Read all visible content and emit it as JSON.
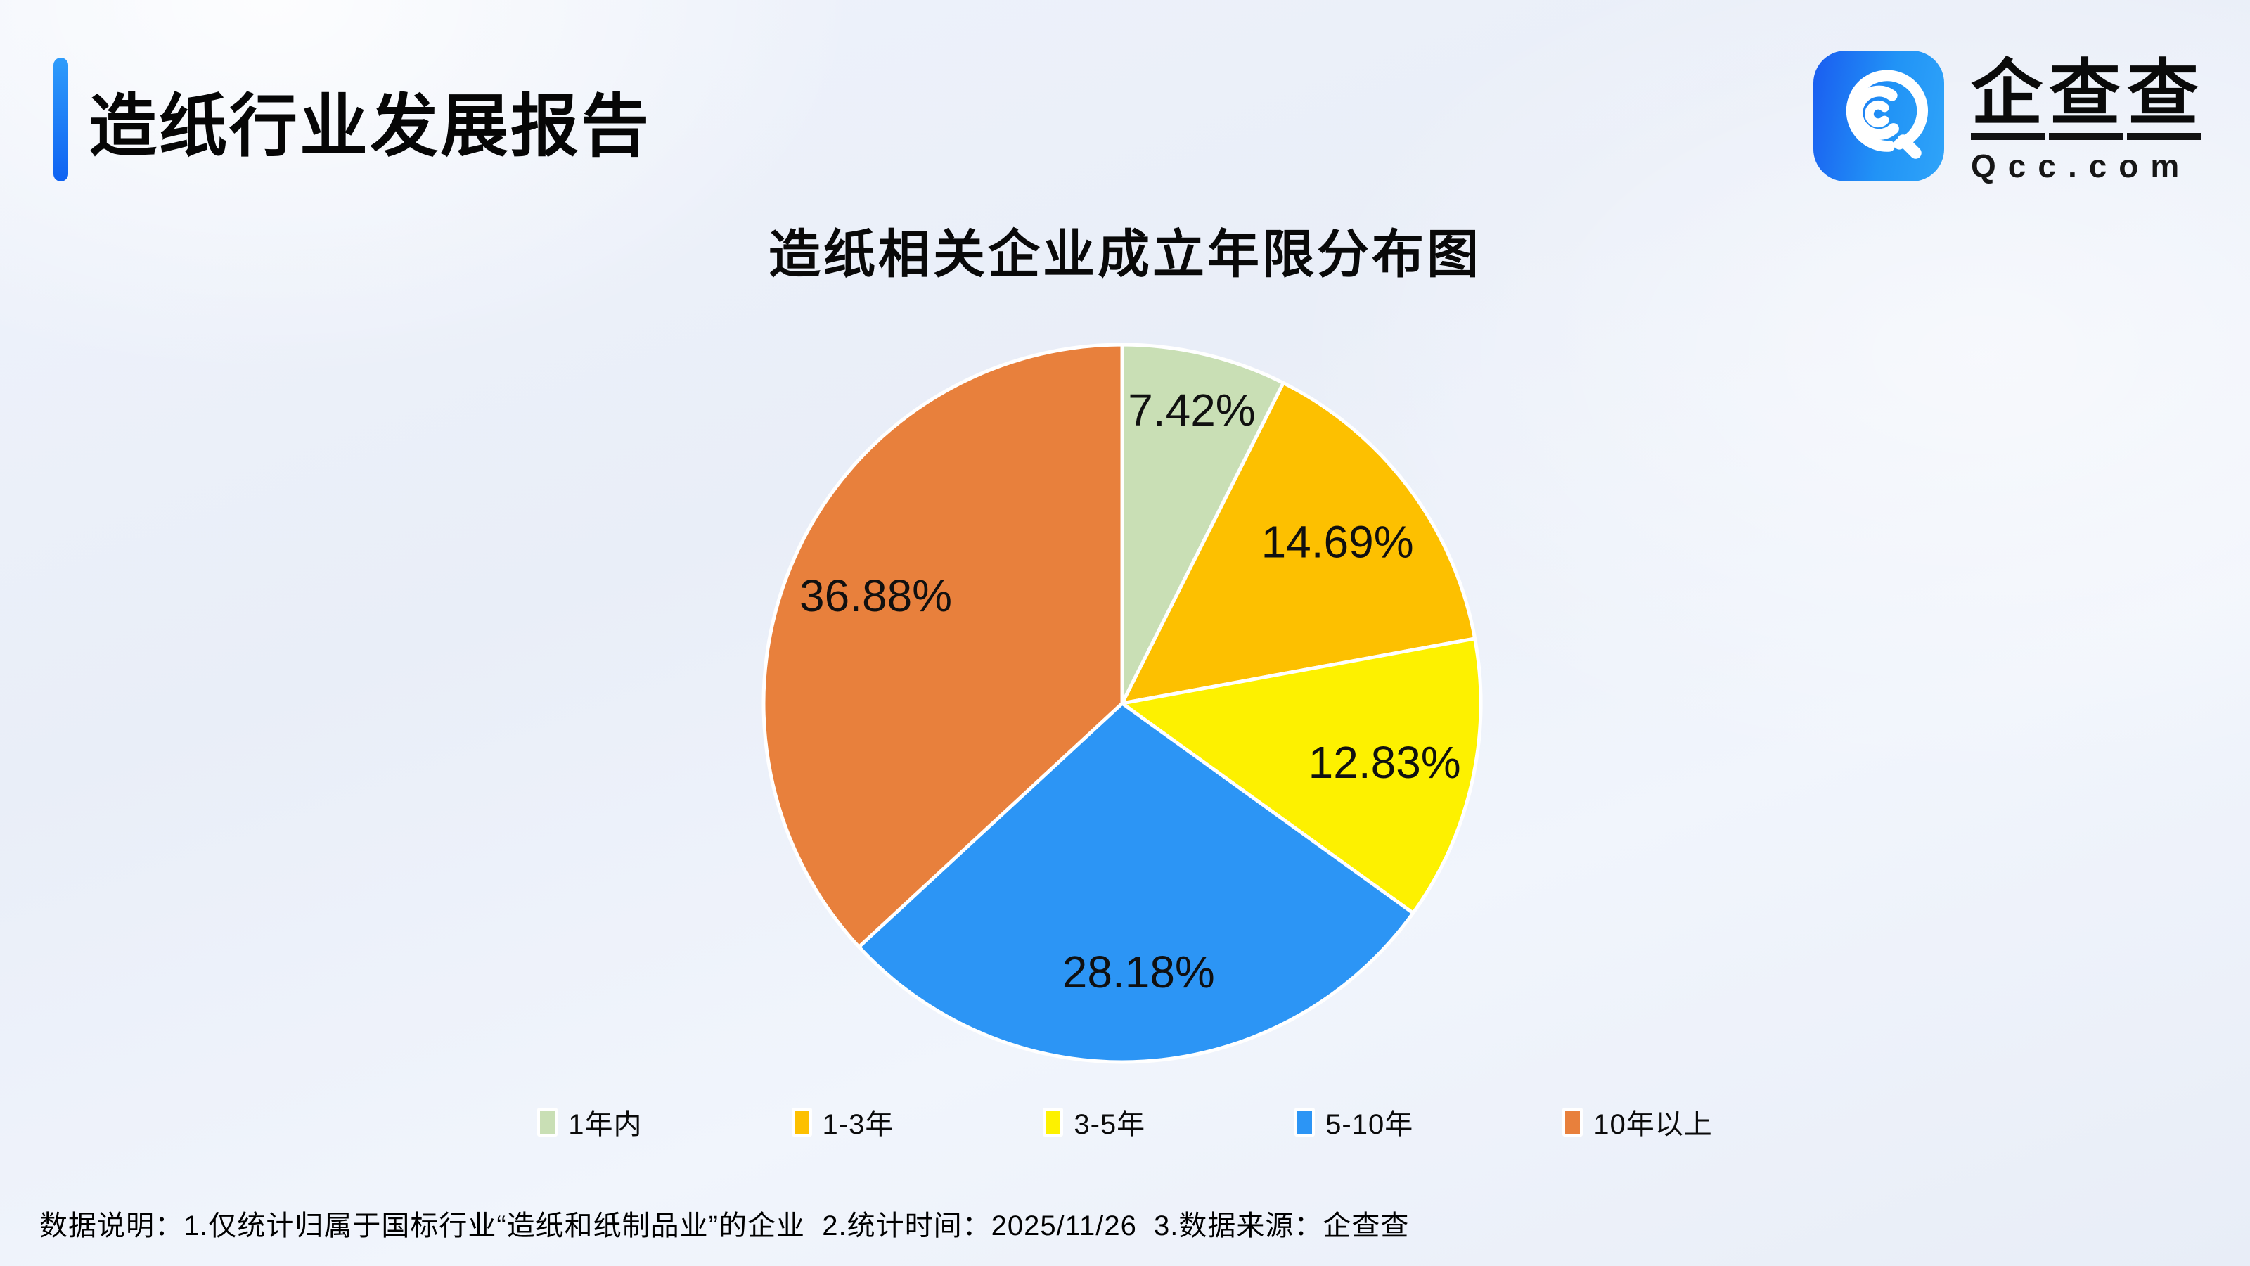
{
  "header": {
    "title": "造纸行业发展报告",
    "accent_color_top": "#2e9cfb",
    "accent_color_bottom": "#0f62f2"
  },
  "logo": {
    "brand": "企查查",
    "brand_chars": [
      "企",
      "查",
      "查"
    ],
    "domain": "Qcc.com",
    "icon": "qcc-magnifier-icon",
    "icon_gradient_start": "#1a5cf0",
    "icon_gradient_end": "#2fa4f9"
  },
  "chart": {
    "title": "造纸相关企业成立年限分布图"
  },
  "chart_data": {
    "type": "pie",
    "title": "造纸相关企业成立年限分布图",
    "categories": [
      "1年内",
      "1-3年",
      "3-5年",
      "5-10年",
      "10年以上"
    ],
    "values": [
      7.42,
      14.69,
      12.83,
      28.18,
      36.88
    ],
    "labels": [
      "7.42%",
      "14.69%",
      "12.83%",
      "28.18%",
      "36.88%"
    ],
    "colors": [
      "#c9dfb5",
      "#fdc000",
      "#fdf100",
      "#2c95f5",
      "#e8803c"
    ],
    "start_angle_deg": -90,
    "direction": "clockwise",
    "slice_border_color": "#ffffff",
    "label_color": "#101010",
    "legend_position": "bottom"
  },
  "footer": {
    "note": "数据说明：1.仅统计归属于国标行业“造纸和纸制品业”的企业  2.统计时间：2025/11/26  3.数据来源：企查查"
  }
}
